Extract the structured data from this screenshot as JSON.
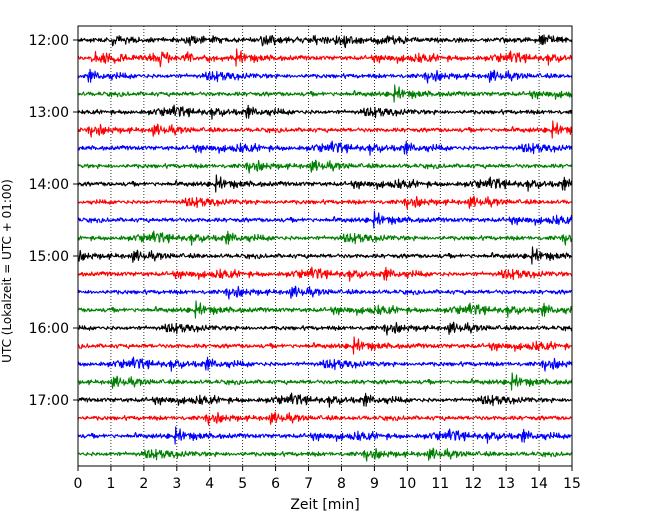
{
  "chart_data": {
    "type": "line",
    "title": "",
    "xlabel": "Zeit  [min]",
    "ylabel": "UTC (Lokalzeit = UTC + 01:00)",
    "xlim": [
      0,
      15
    ],
    "xticks": [
      "0",
      "1",
      "2",
      "3",
      "4",
      "5",
      "6",
      "7",
      "8",
      "9",
      "10",
      "11",
      "12",
      "13",
      "14",
      "15"
    ],
    "yticks": [
      "12:00",
      "13:00",
      "14:00",
      "15:00",
      "16:00",
      "17:00"
    ],
    "grid": "vertical dotted at each minute",
    "colors": [
      "#000000",
      "#ff0000",
      "#0000ff",
      "#008000"
    ],
    "series": [
      {
        "trace_start": "12:00",
        "color": "#000000"
      },
      {
        "trace_start": "12:15",
        "color": "#ff0000"
      },
      {
        "trace_start": "12:30",
        "color": "#0000ff"
      },
      {
        "trace_start": "12:45",
        "color": "#008000"
      },
      {
        "trace_start": "13:00",
        "color": "#000000"
      },
      {
        "trace_start": "13:15",
        "color": "#ff0000"
      },
      {
        "trace_start": "13:30",
        "color": "#0000ff"
      },
      {
        "trace_start": "13:45",
        "color": "#008000"
      },
      {
        "trace_start": "14:00",
        "color": "#000000"
      },
      {
        "trace_start": "14:15",
        "color": "#ff0000"
      },
      {
        "trace_start": "14:30",
        "color": "#0000ff"
      },
      {
        "trace_start": "14:45",
        "color": "#008000"
      },
      {
        "trace_start": "15:00",
        "color": "#000000"
      },
      {
        "trace_start": "15:15",
        "color": "#ff0000"
      },
      {
        "trace_start": "15:30",
        "color": "#0000ff"
      },
      {
        "trace_start": "15:45",
        "color": "#008000"
      },
      {
        "trace_start": "16:00",
        "color": "#000000"
      },
      {
        "trace_start": "16:15",
        "color": "#ff0000"
      },
      {
        "trace_start": "16:30",
        "color": "#0000ff"
      },
      {
        "trace_start": "16:45",
        "color": "#008000"
      },
      {
        "trace_start": "17:00",
        "color": "#000000"
      },
      {
        "trace_start": "17:15",
        "color": "#ff0000"
      },
      {
        "trace_start": "17:30",
        "color": "#0000ff"
      },
      {
        "trace_start": "17:45",
        "color": "#008000"
      }
    ]
  }
}
